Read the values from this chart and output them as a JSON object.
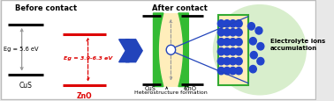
{
  "bg_color": "#e8e8e8",
  "panel_bg": "#ffffff",
  "title_before": "Before contact",
  "title_after": "After contact",
  "cus_label": "CuS",
  "zno_label": "ZnO",
  "eg_cus": "Eg = 5.6 eV",
  "eg_zno": "Eg = 3.9-6.3 eV",
  "hetero_label": "Heterostructure formation",
  "electrolyte_label": "Electrolyte ions\naccumulation",
  "cus_label2": "CuS",
  "zno_label2": "ZnO",
  "black_line_color": "#000000",
  "red_line_color": "#dd0000",
  "arrow_color": "#2244bb",
  "zno_rect_color": "#ffeebb",
  "green_strip_color": "#33bb33",
  "circle_bg_color": "#d8eecc",
  "dot_color": "#2244cc",
  "green_border": "#33aa33",
  "text_red": "#dd0000",
  "text_black": "#000000",
  "gray_arrow": "#999999"
}
